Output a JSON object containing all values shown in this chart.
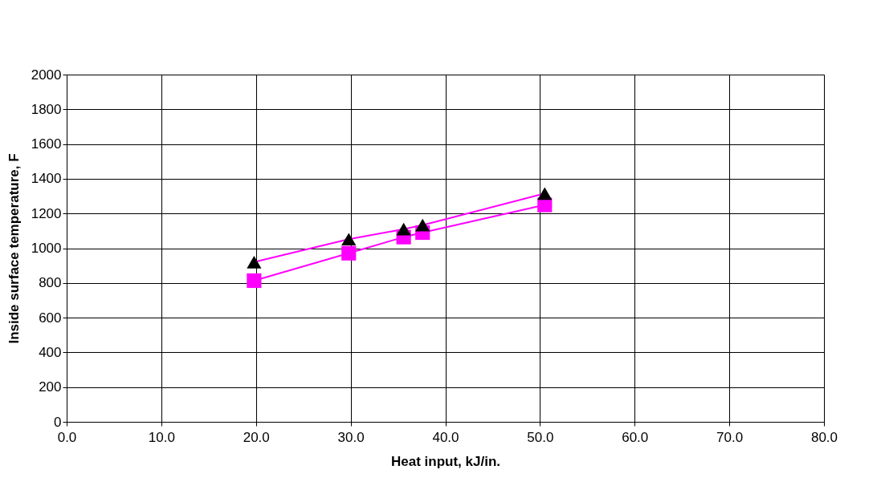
{
  "chart_data": {
    "type": "line",
    "xlabel": "Heat input, kJ/in.",
    "ylabel": "Inside surface temperature, F",
    "xlim": [
      0,
      80
    ],
    "xticks": [
      {
        "value": 0,
        "label": "0.0"
      },
      {
        "value": 10,
        "label": "10.0"
      },
      {
        "value": 20,
        "label": "20.0"
      },
      {
        "value": 30,
        "label": "30.0"
      },
      {
        "value": 40,
        "label": "40.0"
      },
      {
        "value": 50,
        "label": "50.0"
      },
      {
        "value": 60,
        "label": "60.0"
      },
      {
        "value": 70,
        "label": "70.0"
      },
      {
        "value": 80,
        "label": "80.0"
      }
    ],
    "ylim": [
      0,
      2000
    ],
    "yticks": [
      0,
      200,
      400,
      600,
      800,
      1000,
      1200,
      1400,
      1600,
      1800,
      2000
    ],
    "grid": true,
    "series": [
      {
        "color": "#ff00ff",
        "marker": "square",
        "x": [
          19.8,
          29.8,
          35.6,
          37.6,
          50.5
        ],
        "values": [
          813,
          971,
          1064,
          1090,
          1249
        ]
      },
      {
        "color": "#000000",
        "marker": "triangle",
        "x": [
          19.8,
          29.8,
          35.6,
          37.6,
          50.5
        ],
        "values": [
          920,
          1052,
          1110,
          1133,
          1315
        ]
      }
    ]
  }
}
